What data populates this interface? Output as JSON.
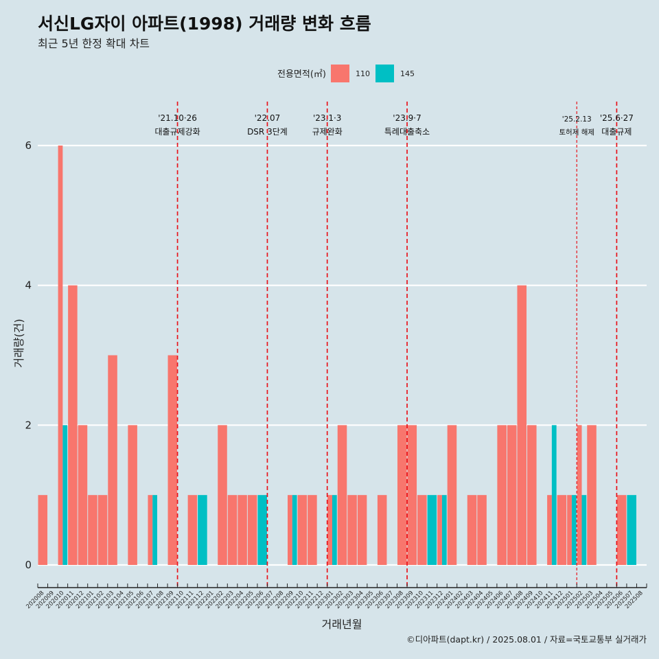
{
  "chart_data": {
    "type": "bar",
    "title": "서신LG자이 아파트(1998) 거래량 변화 흐름",
    "subtitle": "최근 5년 한정 확대 차트",
    "xlabel": "거래년월",
    "ylabel": "거래량(건)",
    "ylim": [
      0,
      6
    ],
    "yticks": [
      0,
      2,
      4,
      6
    ],
    "legend_title": "전용면적(㎡)",
    "caption": "©디아파트(dapt.kr) / 2025.08.01 / 자료=국토교통부 실거래가",
    "categories": [
      "202008",
      "202009",
      "202010",
      "202011",
      "202012",
      "202101",
      "202102",
      "202103",
      "202104",
      "202105",
      "202106",
      "202107",
      "202108",
      "202109",
      "202110",
      "202111",
      "202112",
      "202201",
      "202202",
      "202203",
      "202204",
      "202205",
      "202206",
      "202207",
      "202208",
      "202209",
      "202210",
      "202211",
      "202212",
      "202301",
      "202302",
      "202303",
      "202304",
      "202305",
      "202306",
      "202307",
      "202308",
      "202309",
      "202310",
      "202311",
      "202312",
      "202401",
      "202402",
      "202403",
      "202404",
      "202405",
      "202406",
      "202407",
      "202408",
      "202409",
      "202410",
      "202411",
      "202412",
      "202501",
      "202502",
      "202503",
      "202504",
      "202505",
      "202506",
      "202507",
      "202508"
    ],
    "series": [
      {
        "name": "110",
        "color": "#f8766d",
        "values": [
          1,
          0,
          6,
          4,
          2,
          1,
          1,
          3,
          0,
          2,
          0,
          1,
          0,
          3,
          0,
          1,
          0,
          0,
          2,
          1,
          1,
          1,
          0,
          0,
          0,
          1,
          1,
          1,
          0,
          1,
          2,
          1,
          1,
          0,
          1,
          0,
          2,
          2,
          1,
          0,
          1,
          2,
          0,
          1,
          1,
          0,
          2,
          2,
          4,
          2,
          0,
          1,
          1,
          1,
          2,
          2,
          0,
          0,
          1,
          0,
          0
        ]
      },
      {
        "name": "145",
        "color": "#00bfc4",
        "values": [
          0,
          0,
          2,
          0,
          0,
          0,
          0,
          0,
          0,
          0,
          0,
          1,
          0,
          0,
          0,
          0,
          1,
          0,
          0,
          0,
          0,
          0,
          1,
          0,
          0,
          1,
          0,
          0,
          0,
          1,
          0,
          0,
          0,
          0,
          0,
          0,
          0,
          0,
          0,
          1,
          1,
          0,
          0,
          0,
          0,
          0,
          0,
          0,
          0,
          0,
          0,
          2,
          0,
          1,
          1,
          0,
          0,
          0,
          0,
          1,
          0
        ]
      }
    ],
    "annotations": [
      {
        "date": "'21.10·26",
        "label": "대출규제강화",
        "x": "202110",
        "small": false
      },
      {
        "date": "'22.07",
        "label": "DSR 3단계",
        "x": "202207",
        "small": false
      },
      {
        "date": "'23.1·3",
        "label": "규제완화",
        "x": "202301",
        "small": false
      },
      {
        "date": "'23.9·7",
        "label": "특례대출축소",
        "x": "202309",
        "small": false
      },
      {
        "date": "'25.2.13",
        "label": "토허제 해제",
        "x": "202502",
        "small": true
      },
      {
        "date": "'25.6·27",
        "label": "대출규제",
        "x": "202506",
        "small": false
      }
    ],
    "grid": true,
    "legend_position": "top"
  }
}
